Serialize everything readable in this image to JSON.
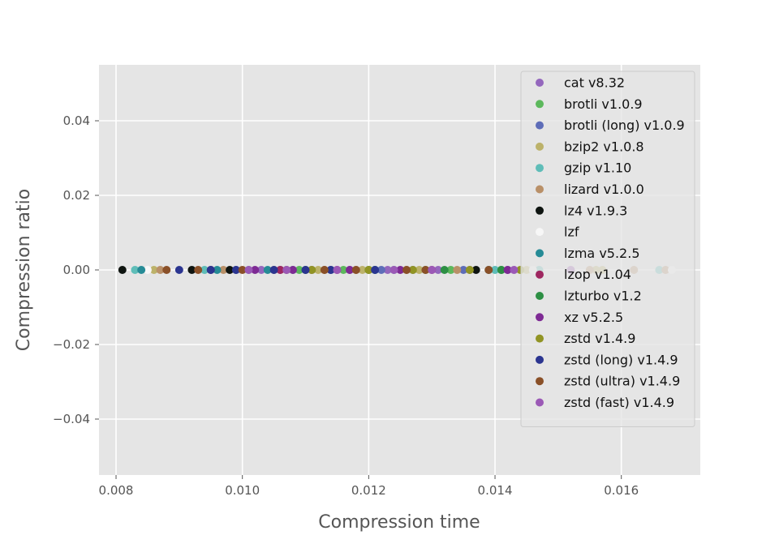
{
  "chart_data": {
    "type": "scatter",
    "title": "",
    "xlabel": "Compression time",
    "ylabel": "Compression ratio",
    "xlim": [
      0.00773,
      0.01725
    ],
    "ylim": [
      -0.055,
      0.055
    ],
    "xticks": [
      {
        "value": 0.008,
        "label": "0.008"
      },
      {
        "value": 0.01,
        "label": "0.010"
      },
      {
        "value": 0.012,
        "label": "0.012"
      },
      {
        "value": 0.014,
        "label": "0.014"
      },
      {
        "value": 0.016,
        "label": "0.016"
      }
    ],
    "yticks": [
      {
        "value": 0.04,
        "label": "0.04"
      },
      {
        "value": 0.02,
        "label": "0.02"
      },
      {
        "value": 0.0,
        "label": "0.00"
      },
      {
        "value": -0.02,
        "label": "−0.02"
      },
      {
        "value": -0.04,
        "label": "−0.04"
      }
    ],
    "grid": true,
    "style": "ggplot",
    "background_color": "#e5e5e5",
    "grid_color": "#ffffff",
    "legend_position": "upper right",
    "series": [
      {
        "name": "cat v8.32",
        "color": "#9467bd",
        "x": [
          0.0103,
          0.0111,
          0.0117,
          0.0123,
          0.0131,
          0.0136,
          0.0142
        ],
        "y": [
          0,
          0,
          0,
          0,
          0,
          0,
          0
        ]
      },
      {
        "name": "brotli v1.0.9",
        "color": "#5cb85c",
        "x": [
          0.0109,
          0.0116,
          0.0121,
          0.0129,
          0.0133,
          0.0141
        ],
        "y": [
          0,
          0,
          0,
          0,
          0,
          0
        ]
      },
      {
        "name": "brotli (long) v1.0.9",
        "color": "#5e6db8",
        "x": [
          0.0099,
          0.0106,
          0.0114,
          0.0122,
          0.0127,
          0.0135
        ],
        "y": [
          0,
          0,
          0,
          0,
          0,
          0
        ]
      },
      {
        "name": "bzip2 v1.0.8",
        "color": "#bcb26a",
        "x": [
          0.0086,
          0.0112,
          0.0119,
          0.0128,
          0.0145,
          0.0156,
          0.0157
        ],
        "y": [
          0,
          0,
          0,
          0,
          0,
          0,
          0
        ]
      },
      {
        "name": "gzip v1.10",
        "color": "#5fbdb8",
        "x": [
          0.0083,
          0.0094,
          0.0101,
          0.0108,
          0.0124,
          0.014,
          0.0147,
          0.0166
        ],
        "y": [
          0,
          0,
          0,
          0,
          0,
          0,
          0,
          0
        ]
      },
      {
        "name": "lizard v1.0.0",
        "color": "#b99068",
        "x": [
          0.0087,
          0.0097,
          0.0105,
          0.0113,
          0.0118,
          0.0126,
          0.0134,
          0.0155,
          0.0162,
          0.0167
        ],
        "y": [
          0,
          0,
          0,
          0,
          0,
          0,
          0,
          0,
          0,
          0
        ]
      },
      {
        "name": "lz4 v1.9.3",
        "color": "#0e1410",
        "x": [
          0.0081,
          0.0092,
          0.0098,
          0.0137
        ],
        "y": [
          0,
          0,
          0,
          0
        ]
      },
      {
        "name": "lzf",
        "color": "#f7f7f7",
        "x": [
          0.0085,
          0.009,
          0.0146,
          0.0168
        ],
        "y": [
          0,
          0,
          0,
          0
        ]
      },
      {
        "name": "lzma v5.2.5",
        "color": "#268b96",
        "x": [
          0.0084,
          0.0096,
          0.0104,
          0.0121,
          0.0139
        ],
        "y": [
          0,
          0,
          0,
          0,
          0
        ]
      },
      {
        "name": "lzop v1.04",
        "color": "#9e2760",
        "x": [
          0.0095,
          0.0106,
          0.0115,
          0.013
        ],
        "y": [
          0,
          0,
          0,
          0
        ]
      },
      {
        "name": "lzturbo v1.2",
        "color": "#2d8f44",
        "x": [
          0.011,
          0.012,
          0.0132,
          0.0141
        ],
        "y": [
          0,
          0,
          0,
          0
        ]
      },
      {
        "name": "xz v5.2.5",
        "color": "#7e2a94",
        "x": [
          0.0102,
          0.0108,
          0.0117,
          0.0125,
          0.0142
        ],
        "y": [
          0,
          0,
          0,
          0,
          0
        ]
      },
      {
        "name": "zstd v1.4.9",
        "color": "#919424",
        "x": [
          0.0111,
          0.012,
          0.0127,
          0.0136,
          0.0144
        ],
        "y": [
          0,
          0,
          0,
          0,
          0
        ]
      },
      {
        "name": "zstd (long) v1.4.9",
        "color": "#2b3590",
        "x": [
          0.009,
          0.0095,
          0.0099,
          0.0105,
          0.011,
          0.0114,
          0.0121
        ],
        "y": [
          0,
          0,
          0,
          0,
          0,
          0,
          0
        ]
      },
      {
        "name": "zstd (ultra) v1.4.9",
        "color": "#8a5028",
        "x": [
          0.0088,
          0.0093,
          0.01,
          0.0107,
          0.0113,
          0.0118,
          0.0126,
          0.0129,
          0.0139
        ],
        "y": [
          0,
          0,
          0,
          0,
          0,
          0,
          0,
          0,
          0
        ]
      },
      {
        "name": "zstd (fast) v1.4.9",
        "color": "#9b59b6",
        "x": [
          0.0101,
          0.0107,
          0.0115,
          0.0124,
          0.013,
          0.0143,
          0.0152
        ],
        "y": [
          0,
          0,
          0,
          0,
          0,
          0,
          0
        ]
      }
    ]
  }
}
